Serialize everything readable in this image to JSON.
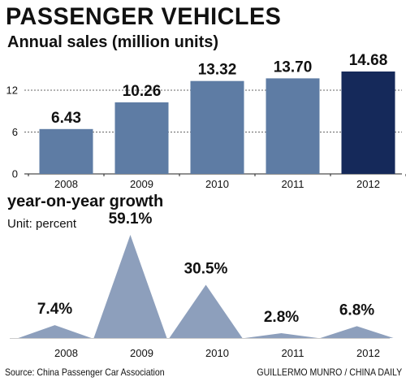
{
  "header": {
    "title": "PASSENGER VEHICLES",
    "subtitle_sales": "Annual sales (million units)",
    "subtitle_growth": "year-on-year growth",
    "unit_label": "Unit: percent"
  },
  "footer": {
    "source": "Source: China Passenger Car Association",
    "credit": "GUILLERMO MUNRO / CHINA DAILY"
  },
  "colors": {
    "bar": "#5e7ca4",
    "bar_highlight": "#15295a",
    "triangle": "#8d9fbc",
    "grid": "#333333"
  },
  "chart_data": [
    {
      "type": "bar",
      "title": "Annual sales (million units)",
      "categories": [
        "2008",
        "2009",
        "2010",
        "2011",
        "2012"
      ],
      "values": [
        6.43,
        10.26,
        13.32,
        13.7,
        14.68
      ],
      "value_labels": [
        "6.43",
        "10.26",
        "13.32",
        "13.70",
        "14.68"
      ],
      "highlight_index": 4,
      "ylim": [
        0,
        15.5
      ],
      "yticks": [
        0,
        6,
        12
      ],
      "grid": true
    },
    {
      "type": "area",
      "title": "year-on-year growth",
      "unit": "Unit: percent",
      "categories": [
        "2008",
        "2009",
        "2010",
        "2011",
        "2012"
      ],
      "values": [
        7.4,
        59.1,
        30.5,
        2.8,
        6.8
      ],
      "value_labels": [
        "7.4%",
        "59.1%",
        "30.5%",
        "2.8%",
        "6.8%"
      ],
      "ylim": [
        0,
        60
      ],
      "grid": false
    }
  ]
}
